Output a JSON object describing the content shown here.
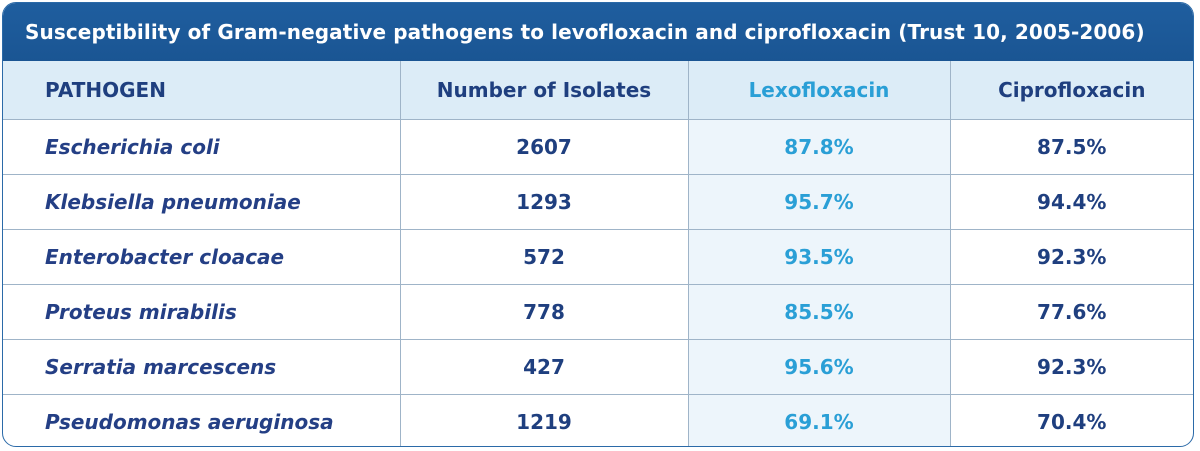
{
  "title": "Susceptibility of Gram-negative pathogens to levofloxacin and ciprofloxacin (Trust 10, 2005-2006)",
  "colors": {
    "title_bar": "#1f5e9f",
    "header_row": "#dcecf7",
    "text": "#1f3f7f",
    "accent": "#2a9fd6"
  },
  "chart_data": {
    "type": "table",
    "title": "Susceptibility of Gram-negative pathogens to levofloxacin and ciprofloxacin (Trust 10, 2005-2006)",
    "columns": [
      "PATHOGEN",
      "Number of Isolates",
      "Lexofloxacin",
      "Ciprofloxacin"
    ],
    "rows": [
      [
        "Escherichia coli",
        "2607",
        "87.8%",
        "87.5%"
      ],
      [
        "Klebsiella pneumoniae",
        "1293",
        "95.7%",
        "94.4%"
      ],
      [
        "Enterobacter cloacae",
        "572",
        "93.5%",
        "92.3%"
      ],
      [
        "Proteus mirabilis",
        "778",
        "85.5%",
        "77.6%"
      ],
      [
        "Serratia marcescens",
        "427",
        "95.6%",
        "92.3%"
      ],
      [
        "Pseudomonas aeruginosa",
        "1219",
        "69.1%",
        "70.4%"
      ]
    ]
  }
}
